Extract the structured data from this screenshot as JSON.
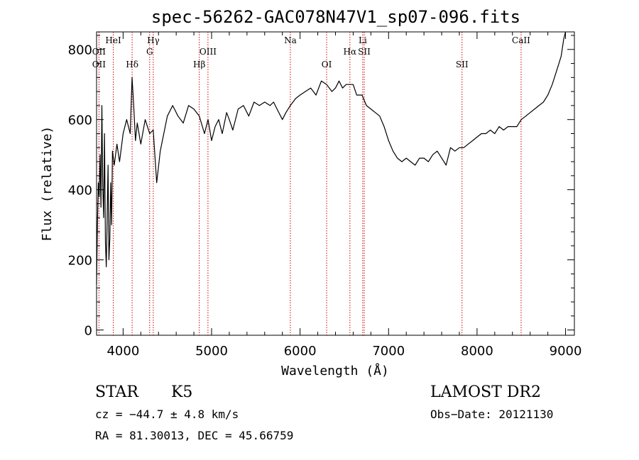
{
  "chart_data": {
    "type": "line",
    "title": "spec-56262-GAC078N47V1_sp07-096.fits",
    "xlabel": "Wavelength (Å)",
    "ylabel": "Flux (relative)",
    "xlim": [
      3700,
      9100
    ],
    "ylim": [
      -15,
      850
    ],
    "xticks": [
      4000,
      5000,
      6000,
      7000,
      8000,
      9000
    ],
    "yticks": [
      0,
      200,
      400,
      600,
      800
    ],
    "grid": false,
    "series": [
      {
        "x": [
          3700,
          3710,
          3720,
          3730,
          3740,
          3750,
          3760,
          3770,
          3780,
          3790,
          3800,
          3810,
          3820,
          3830,
          3840,
          3850,
          3860,
          3870,
          3880,
          3900,
          3930,
          3960,
          4000,
          4040,
          4080,
          4101,
          4120,
          4140,
          4160,
          4200,
          4250,
          4300,
          4340,
          4380,
          4420,
          4460,
          4500,
          4560,
          4620,
          4680,
          4740,
          4800,
          4861,
          4920,
          4960,
          5000,
          5040,
          5080,
          5120,
          5170,
          5200,
          5240,
          5300,
          5360,
          5420,
          5480,
          5540,
          5600,
          5660,
          5700,
          5740,
          5800,
          5840,
          5890,
          5950,
          6000,
          6060,
          6120,
          6180,
          6240,
          6300,
          6360,
          6400,
          6440,
          6480,
          6520,
          6563,
          6600,
          6640,
          6700,
          6750,
          6800,
          6850,
          6900,
          6950,
          7000,
          7050,
          7100,
          7150,
          7200,
          7250,
          7300,
          7350,
          7400,
          7450,
          7500,
          7550,
          7600,
          7650,
          7700,
          7750,
          7800,
          7850,
          7900,
          7950,
          8000,
          8050,
          8100,
          8150,
          8200,
          8250,
          8300,
          8350,
          8400,
          8450,
          8500,
          8550,
          8600,
          8650,
          8700,
          8750,
          8800,
          8850,
          8900,
          8950,
          8980,
          9000
        ],
        "y": [
          130,
          300,
          420,
          380,
          500,
          350,
          640,
          410,
          320,
          560,
          250,
          180,
          330,
          470,
          200,
          260,
          420,
          300,
          510,
          470,
          530,
          480,
          560,
          600,
          560,
          720,
          640,
          540,
          590,
          530,
          600,
          560,
          570,
          420,
          510,
          560,
          610,
          640,
          610,
          590,
          640,
          630,
          610,
          560,
          600,
          540,
          580,
          600,
          560,
          620,
          600,
          570,
          630,
          640,
          610,
          650,
          640,
          650,
          640,
          650,
          630,
          600,
          620,
          640,
          660,
          670,
          680,
          690,
          670,
          710,
          700,
          680,
          690,
          710,
          690,
          700,
          700,
          700,
          670,
          670,
          640,
          630,
          620,
          610,
          580,
          540,
          510,
          490,
          480,
          490,
          480,
          470,
          490,
          490,
          480,
          500,
          510,
          490,
          470,
          520,
          510,
          520,
          520,
          530,
          540,
          550,
          560,
          560,
          570,
          560,
          580,
          570,
          580,
          580,
          580,
          600,
          610,
          620,
          630,
          640,
          650,
          670,
          700,
          740,
          780,
          830,
          850
        ]
      }
    ],
    "line_markers": [
      {
        "wavelength": 3727,
        "label": "OII",
        "row": 1
      },
      {
        "wavelength": 3727,
        "label": "OII",
        "row": 2
      },
      {
        "wavelength": 3889,
        "label": "HeI",
        "row": 0
      },
      {
        "wavelength": 4102,
        "label": "Hδ",
        "row": 2
      },
      {
        "wavelength": 4300,
        "label": "G",
        "row": 1
      },
      {
        "wavelength": 4341,
        "label": "Hγ",
        "row": 0
      },
      {
        "wavelength": 4861,
        "label": "Hβ",
        "row": 2
      },
      {
        "wavelength": 4959,
        "label": "OIII",
        "row": 1
      },
      {
        "wavelength": 5890,
        "label": "Na",
        "row": 0
      },
      {
        "wavelength": 6300,
        "label": "OI",
        "row": 2
      },
      {
        "wavelength": 6563,
        "label": "Hα",
        "row": 1
      },
      {
        "wavelength": 6708,
        "label": "Li",
        "row": 0
      },
      {
        "wavelength": 6725,
        "label": "SII",
        "row": 1
      },
      {
        "wavelength": 7830,
        "label": "SII",
        "row": 2
      },
      {
        "wavelength": 8498,
        "label": "CaII",
        "row": 0
      }
    ],
    "colors": {
      "spectrum": "#000000",
      "markers": "#cc0000",
      "axes": "#000000"
    }
  },
  "info": {
    "object_class": "STAR",
    "subclass": "K5",
    "survey": "LAMOST DR2",
    "cz": "cz = −44.7 ± 4.8 km/s",
    "obs_date": "Obs−Date: 20121130",
    "coords": "RA =  81.30013, DEC =  45.66759"
  }
}
